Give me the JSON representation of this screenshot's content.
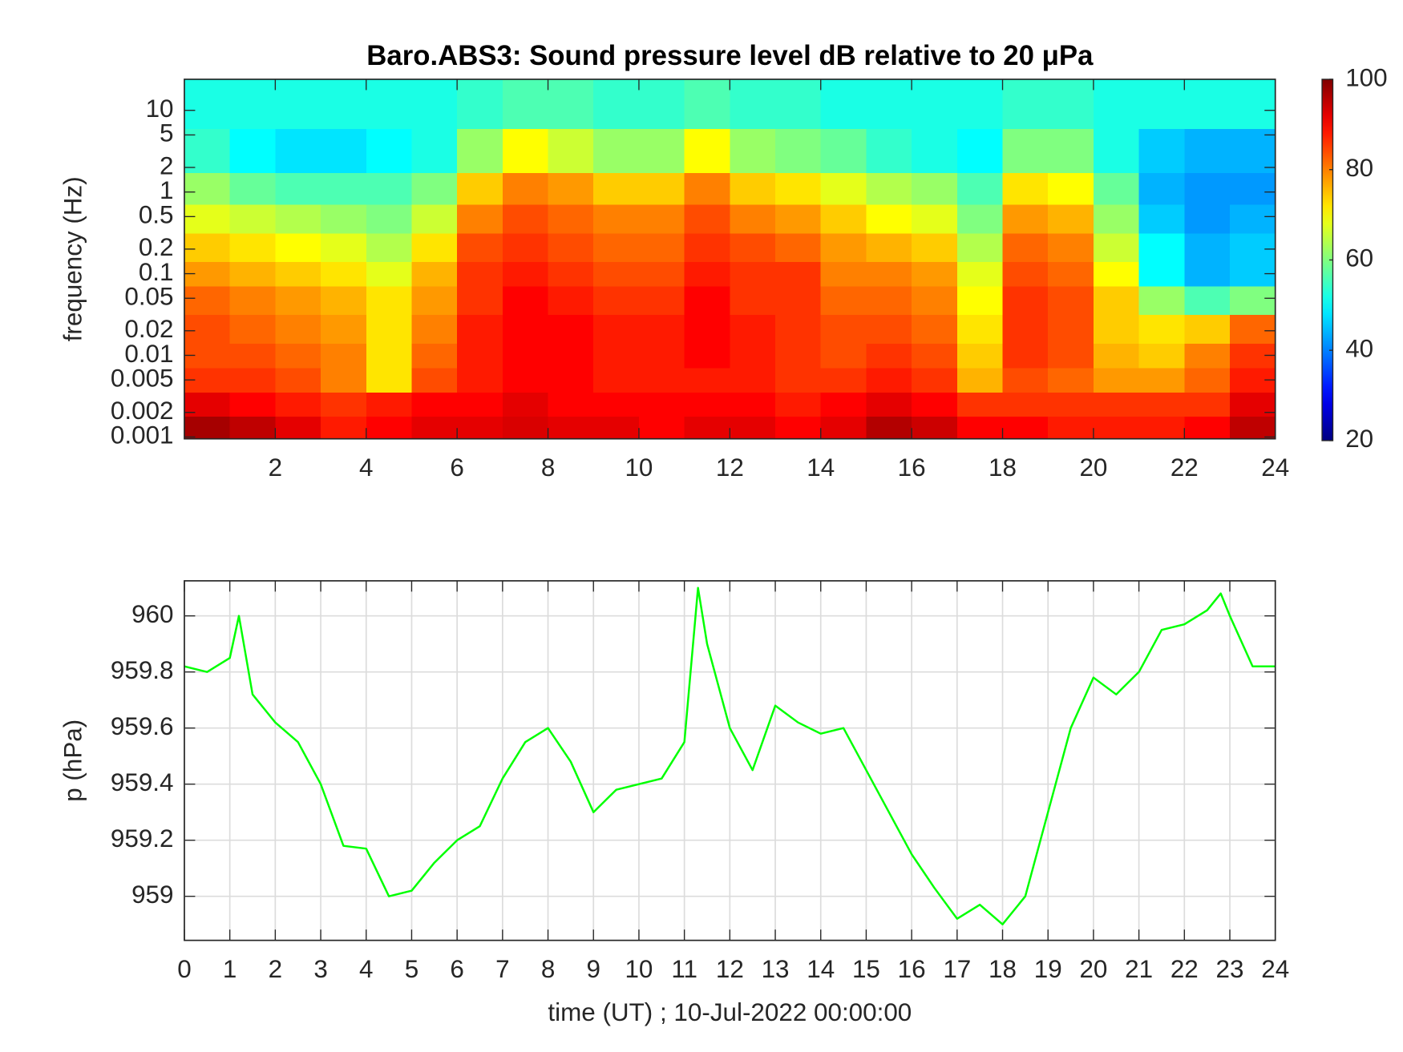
{
  "chart_data": [
    {
      "type": "heatmap",
      "title": "Baro.ABS3: Sound pressure level dB relative to 20 μPa",
      "ylabel": "frequency (Hz)",
      "ylog": true,
      "colormap": "jet",
      "x": [
        0.5,
        1.5,
        2.5,
        3.5,
        4.5,
        5.5,
        6.5,
        7.5,
        8.5,
        9.5,
        10.5,
        11.5,
        12.5,
        13.5,
        14.5,
        15.5,
        16.5,
        17.5,
        18.5,
        19.5,
        20.5,
        21.5,
        22.5,
        23.5
      ],
      "y": [
        0.0013,
        0.0025,
        0.005,
        0.01,
        0.02,
        0.05,
        0.1,
        0.2,
        0.5,
        1,
        3,
        12
      ],
      "z": [
        [
          97,
          95,
          92,
          88,
          90,
          92,
          92,
          93,
          92,
          92,
          90,
          92,
          92,
          90,
          92,
          96,
          94,
          90,
          90,
          88,
          88,
          88,
          90,
          95
        ],
        [
          92,
          90,
          88,
          86,
          88,
          90,
          90,
          92,
          90,
          90,
          90,
          90,
          90,
          88,
          90,
          92,
          90,
          86,
          86,
          86,
          86,
          86,
          86,
          92
        ],
        [
          86,
          86,
          84,
          80,
          72,
          84,
          88,
          90,
          90,
          88,
          88,
          88,
          88,
          86,
          86,
          88,
          86,
          76,
          84,
          82,
          78,
          78,
          82,
          88
        ],
        [
          84,
          84,
          82,
          80,
          72,
          82,
          88,
          90,
          90,
          88,
          88,
          90,
          88,
          86,
          84,
          86,
          84,
          74,
          86,
          84,
          76,
          74,
          80,
          86
        ],
        [
          84,
          82,
          80,
          78,
          72,
          80,
          88,
          90,
          90,
          88,
          88,
          90,
          88,
          86,
          84,
          84,
          82,
          72,
          86,
          84,
          74,
          72,
          74,
          82
        ],
        [
          82,
          80,
          78,
          76,
          72,
          78,
          86,
          90,
          88,
          86,
          86,
          90,
          86,
          86,
          82,
          82,
          80,
          70,
          86,
          84,
          74,
          62,
          56,
          60
        ],
        [
          78,
          76,
          74,
          72,
          68,
          76,
          86,
          88,
          86,
          84,
          84,
          88,
          86,
          86,
          80,
          80,
          78,
          68,
          84,
          82,
          70,
          50,
          44,
          46
        ],
        [
          74,
          72,
          70,
          68,
          64,
          72,
          84,
          86,
          84,
          82,
          82,
          86,
          84,
          82,
          78,
          76,
          74,
          64,
          82,
          80,
          66,
          50,
          44,
          46
        ],
        [
          68,
          66,
          64,
          62,
          60,
          66,
          80,
          84,
          82,
          80,
          80,
          84,
          80,
          78,
          74,
          70,
          68,
          60,
          78,
          76,
          62,
          46,
          42,
          44
        ],
        [
          62,
          58,
          56,
          56,
          56,
          60,
          74,
          80,
          78,
          74,
          74,
          80,
          74,
          72,
          68,
          64,
          62,
          56,
          72,
          70,
          58,
          44,
          42,
          42
        ],
        [
          54,
          50,
          48,
          48,
          50,
          52,
          62,
          70,
          66,
          62,
          62,
          70,
          62,
          60,
          58,
          54,
          52,
          50,
          60,
          60,
          52,
          46,
          44,
          44
        ],
        [
          52,
          52,
          52,
          52,
          52,
          52,
          54,
          56,
          56,
          54,
          54,
          56,
          54,
          54,
          52,
          52,
          52,
          52,
          54,
          54,
          52,
          52,
          52,
          52
        ]
      ],
      "xlim": [
        0,
        24
      ],
      "xticks": [
        2,
        4,
        6,
        8,
        10,
        12,
        14,
        16,
        18,
        20,
        22,
        24
      ],
      "ylim": [
        0.00095,
        24
      ],
      "yticks": [
        0.001,
        0.002,
        0.005,
        0.01,
        0.02,
        0.05,
        0.1,
        0.2,
        0.5,
        1,
        2,
        5,
        10
      ],
      "clim": [
        20,
        100
      ],
      "cticks": [
        20,
        40,
        60,
        80,
        100
      ]
    },
    {
      "type": "line",
      "xlabel": "time (UT) ; 10-Jul-2022 00:00:00",
      "ylabel": "p (hPa)",
      "grid": true,
      "color": "#00ff00",
      "x": [
        0,
        0.5,
        1,
        1.2,
        1.5,
        2,
        2.5,
        3,
        3.5,
        4,
        4.5,
        5,
        5.5,
        6,
        6.5,
        7,
        7.5,
        8,
        8.5,
        9,
        9.5,
        10,
        10.5,
        11,
        11.3,
        11.5,
        12,
        12.5,
        13,
        13.5,
        14,
        14.5,
        15,
        15.5,
        16,
        16.5,
        17,
        17.5,
        18,
        18.5,
        19,
        19.5,
        20,
        20.5,
        21,
        21.5,
        22,
        22.5,
        22.8,
        23,
        23.5,
        24
      ],
      "values": [
        959.82,
        959.8,
        959.85,
        960.0,
        959.72,
        959.62,
        959.55,
        959.4,
        959.18,
        959.17,
        959.0,
        959.02,
        959.12,
        959.2,
        959.25,
        959.42,
        959.55,
        959.6,
        959.48,
        959.3,
        959.38,
        959.4,
        959.42,
        959.55,
        960.1,
        959.9,
        959.6,
        959.45,
        959.68,
        959.62,
        959.58,
        959.6,
        959.45,
        959.3,
        959.15,
        959.03,
        958.92,
        958.97,
        958.9,
        959.0,
        959.3,
        959.6,
        959.78,
        959.72,
        959.8,
        959.95,
        959.97,
        960.02,
        960.08,
        960.0,
        959.82,
        959.82
      ],
      "xlim": [
        0,
        24
      ],
      "xticks": [
        0,
        1,
        2,
        3,
        4,
        5,
        6,
        7,
        8,
        9,
        10,
        11,
        12,
        13,
        14,
        15,
        16,
        17,
        18,
        19,
        20,
        21,
        22,
        23,
        24
      ],
      "ylim": [
        958.843,
        960.125
      ],
      "yticks": [
        959,
        959.2,
        959.4,
        959.6,
        959.8,
        960
      ]
    }
  ]
}
